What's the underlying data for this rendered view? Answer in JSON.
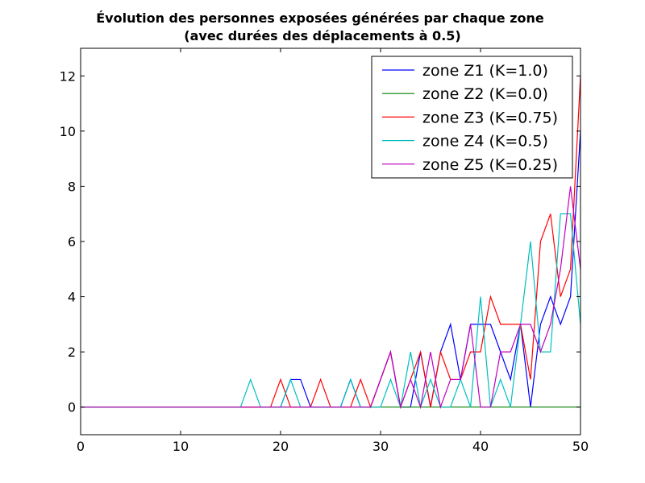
{
  "chart_data": {
    "type": "line",
    "title": [
      "Évolution des personnes exposées générées par chaque zone",
      "(avec durées des déplacements à 0.5)"
    ],
    "xlabel": "",
    "ylabel": "",
    "xlim": [
      0,
      50
    ],
    "ylim": [
      -1,
      13
    ],
    "x_ticks": [
      0,
      10,
      20,
      30,
      40,
      50
    ],
    "y_ticks": [
      0,
      2,
      4,
      6,
      8,
      10,
      12
    ],
    "grid": false,
    "legend_position": "top-right",
    "x": [
      0,
      1,
      2,
      3,
      4,
      5,
      6,
      7,
      8,
      9,
      10,
      11,
      12,
      13,
      14,
      15,
      16,
      17,
      18,
      19,
      20,
      21,
      22,
      23,
      24,
      25,
      26,
      27,
      28,
      29,
      30,
      31,
      32,
      33,
      34,
      35,
      36,
      37,
      38,
      39,
      40,
      41,
      42,
      43,
      44,
      45,
      46,
      47,
      48,
      49,
      50
    ],
    "series": [
      {
        "name": "zone Z1 (K=1.0)",
        "color": "#0000ff",
        "values": [
          0,
          0,
          0,
          0,
          0,
          0,
          0,
          0,
          0,
          0,
          0,
          0,
          0,
          0,
          0,
          0,
          0,
          0,
          0,
          0,
          0,
          1,
          1,
          0,
          0,
          0,
          0,
          1,
          0,
          0,
          1,
          2,
          0,
          0,
          2,
          0,
          2,
          3,
          1,
          3,
          3,
          3,
          2,
          1,
          3,
          0,
          3,
          4,
          3,
          4,
          10
        ]
      },
      {
        "name": "zone Z2 (K=0.0)",
        "color": "#008000",
        "values": [
          0,
          0,
          0,
          0,
          0,
          0,
          0,
          0,
          0,
          0,
          0,
          0,
          0,
          0,
          0,
          0,
          0,
          0,
          0,
          0,
          0,
          0,
          0,
          0,
          0,
          0,
          0,
          0,
          0,
          0,
          0,
          0,
          0,
          0,
          0,
          0,
          0,
          0,
          0,
          0,
          0,
          0,
          0,
          0,
          0,
          0,
          0,
          0,
          0,
          0,
          0
        ]
      },
      {
        "name": "zone Z3 (K=0.75)",
        "color": "#ff0000",
        "values": [
          0,
          0,
          0,
          0,
          0,
          0,
          0,
          0,
          0,
          0,
          0,
          0,
          0,
          0,
          0,
          0,
          0,
          0,
          0,
          0,
          1,
          0,
          0,
          0,
          1,
          0,
          0,
          0,
          1,
          0,
          1,
          2,
          0,
          1,
          2,
          0,
          2,
          1,
          1,
          2,
          2,
          4,
          3,
          3,
          3,
          1,
          6,
          7,
          4,
          5,
          12
        ]
      },
      {
        "name": "zone Z4 (K=0.5)",
        "color": "#00bfbf",
        "values": [
          0,
          0,
          0,
          0,
          0,
          0,
          0,
          0,
          0,
          0,
          0,
          0,
          0,
          0,
          0,
          0,
          0,
          1,
          0,
          0,
          0,
          1,
          0,
          0,
          0,
          0,
          0,
          1,
          0,
          0,
          0,
          1,
          0,
          2,
          0,
          1,
          0,
          0,
          1,
          0,
          4,
          0,
          1,
          0,
          3,
          6,
          2,
          2,
          7,
          7,
          3
        ]
      },
      {
        "name": "zone Z5 (K=0.25)",
        "color": "#bf00bf",
        "values": [
          0,
          0,
          0,
          0,
          0,
          0,
          0,
          0,
          0,
          0,
          0,
          0,
          0,
          0,
          0,
          0,
          0,
          0,
          0,
          0,
          0,
          0,
          0,
          0,
          0,
          0,
          0,
          0,
          0,
          0,
          1,
          2,
          0,
          1,
          0,
          2,
          0,
          1,
          1,
          3,
          0,
          0,
          2,
          2,
          3,
          3,
          2,
          3,
          5,
          8,
          5
        ]
      }
    ]
  }
}
